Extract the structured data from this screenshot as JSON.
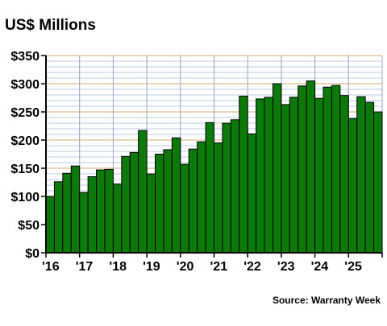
{
  "chart_data": {
    "type": "bar",
    "title": "US$ Millions",
    "source": "Source: Warranty Week",
    "x_tick_labels": [
      "'16",
      "'17",
      "'18",
      "'19",
      "'20",
      "'21",
      "'22",
      "'23",
      "'24",
      "'25"
    ],
    "y_tick_labels": [
      "$0",
      "$50",
      "$100",
      "$150",
      "$200",
      "$250",
      "$300",
      "$350"
    ],
    "ylim": [
      0,
      350
    ],
    "y_ticks": [
      0,
      50,
      100,
      150,
      200,
      250,
      300,
      350
    ],
    "minor_grid_step": 10,
    "grid": true,
    "legend": "none",
    "colors": {
      "bar_fill": "#0b7a0b",
      "bar_stroke": "#000000",
      "grid_minor": "#b8cbe6",
      "grid_major": "#d6a96f",
      "grid_vertical": "#9aa0c0",
      "axis": "#000000"
    },
    "categories": [
      "2016 Q1",
      "2016 Q2",
      "2016 Q3",
      "2016 Q4",
      "2017 Q1",
      "2017 Q2",
      "2017 Q3",
      "2017 Q4",
      "2018 Q1",
      "2018 Q2",
      "2018 Q3",
      "2018 Q4",
      "2019 Q1",
      "2019 Q2",
      "2019 Q3",
      "2019 Q4",
      "2020 Q1",
      "2020 Q2",
      "2020 Q3",
      "2020 Q4",
      "2021 Q1",
      "2021 Q2",
      "2021 Q3",
      "2021 Q4",
      "2022 Q1",
      "2022 Q2",
      "2022 Q3",
      "2022 Q4",
      "2023 Q1",
      "2023 Q2",
      "2023 Q3",
      "2023 Q4",
      "2024 Q1",
      "2024 Q2",
      "2024 Q3",
      "2024 Q4",
      "2025 Q1",
      "2025 Q2",
      "2025 Q3",
      "2025 Q4"
    ],
    "values": [
      100,
      126,
      141,
      154,
      107,
      135,
      147,
      148,
      122,
      171,
      178,
      217,
      140,
      175,
      183,
      204,
      157,
      184,
      197,
      231,
      195,
      230,
      236,
      278,
      211,
      273,
      276,
      300,
      263,
      276,
      296,
      305,
      274,
      294,
      297,
      279,
      238,
      277,
      267,
      250
    ]
  }
}
